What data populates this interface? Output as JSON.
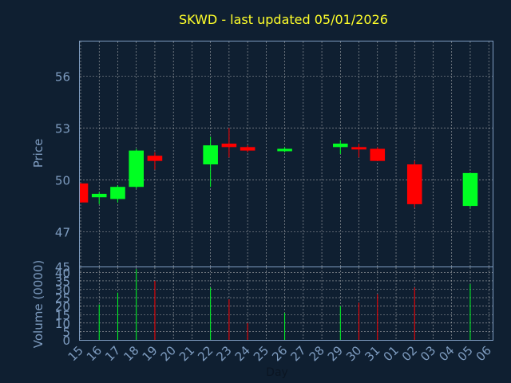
{
  "chart_data": [
    {
      "type": "candlestick",
      "title": "SKWD - last updated 05/01/2026",
      "ylabel": "Price",
      "ylim": [
        45,
        58.0
      ],
      "yticks": [
        45,
        47,
        50,
        53,
        56
      ],
      "grid": true,
      "colors": {
        "up": "#00ff22",
        "down": "#ff0000",
        "background": "#0f1f31",
        "grid": "#c8c8c8",
        "frame": "#7e9cc0",
        "title": "#ffff2a",
        "tick": "#7e9cc0"
      },
      "categories": [
        "15",
        "16",
        "17",
        "18",
        "19",
        "20",
        "21",
        "22",
        "23",
        "24",
        "25",
        "26",
        "27",
        "28",
        "29",
        "30",
        "31",
        "01",
        "02",
        "03",
        "04",
        "05",
        "06"
      ],
      "candles": [
        {
          "day": "15",
          "open": 49.8,
          "high": 49.8,
          "low": 48.7,
          "close": 48.7
        },
        {
          "day": "16",
          "open": 49.0,
          "high": 49.3,
          "low": 48.6,
          "close": 49.2
        },
        {
          "day": "17",
          "open": 48.9,
          "high": 49.7,
          "low": 48.7,
          "close": 49.6
        },
        {
          "day": "18",
          "open": 49.6,
          "high": 51.8,
          "low": 49.5,
          "close": 51.7
        },
        {
          "day": "19",
          "open": 51.4,
          "high": 51.6,
          "low": 50.6,
          "close": 51.1
        },
        {
          "day": "22",
          "open": 50.9,
          "high": 52.5,
          "low": 49.6,
          "close": 52.0
        },
        {
          "day": "23",
          "open": 52.1,
          "high": 53.0,
          "low": 51.3,
          "close": 51.9
        },
        {
          "day": "24",
          "open": 51.9,
          "high": 52.0,
          "low": 51.6,
          "close": 51.7
        },
        {
          "day": "26",
          "open": 51.8,
          "high": 51.9,
          "low": 51.6,
          "close": 51.8
        },
        {
          "day": "29",
          "open": 51.9,
          "high": 52.3,
          "low": 51.5,
          "close": 52.1
        },
        {
          "day": "30",
          "open": 51.9,
          "high": 52.1,
          "low": 51.3,
          "close": 51.8
        },
        {
          "day": "31",
          "open": 51.8,
          "high": 51.9,
          "low": 51.1,
          "close": 51.1
        },
        {
          "day": "02",
          "open": 50.9,
          "high": 51.1,
          "low": 48.4,
          "close": 48.6
        },
        {
          "day": "05",
          "open": 48.5,
          "high": 50.4,
          "low": 48.4,
          "close": 50.4
        }
      ]
    },
    {
      "type": "bar",
      "ylabel": "Volume (0000)",
      "xlabel": "Day",
      "ylim": [
        0,
        43
      ],
      "yticks": [
        0,
        5,
        10,
        15,
        20,
        25,
        30,
        35,
        40
      ],
      "grid": true,
      "categories": [
        "15",
        "16",
        "17",
        "18",
        "19",
        "20",
        "21",
        "22",
        "23",
        "24",
        "25",
        "26",
        "27",
        "28",
        "29",
        "30",
        "31",
        "01",
        "02",
        "03",
        "04",
        "05",
        "06"
      ],
      "values": [
        {
          "day": "16",
          "volume": 21,
          "direction": "up"
        },
        {
          "day": "17",
          "volume": 28,
          "direction": "up"
        },
        {
          "day": "18",
          "volume": 42,
          "direction": "up"
        },
        {
          "day": "19",
          "volume": 35,
          "direction": "down"
        },
        {
          "day": "22",
          "volume": 31,
          "direction": "up"
        },
        {
          "day": "23",
          "volume": 24,
          "direction": "down"
        },
        {
          "day": "24",
          "volume": 10,
          "direction": "down"
        },
        {
          "day": "26",
          "volume": 16,
          "direction": "up"
        },
        {
          "day": "29",
          "volume": 20,
          "direction": "up"
        },
        {
          "day": "30",
          "volume": 22,
          "direction": "down"
        },
        {
          "day": "31",
          "volume": 27,
          "direction": "down"
        },
        {
          "day": "02",
          "volume": 31,
          "direction": "down"
        },
        {
          "day": "05",
          "volume": 33,
          "direction": "up"
        }
      ]
    }
  ]
}
